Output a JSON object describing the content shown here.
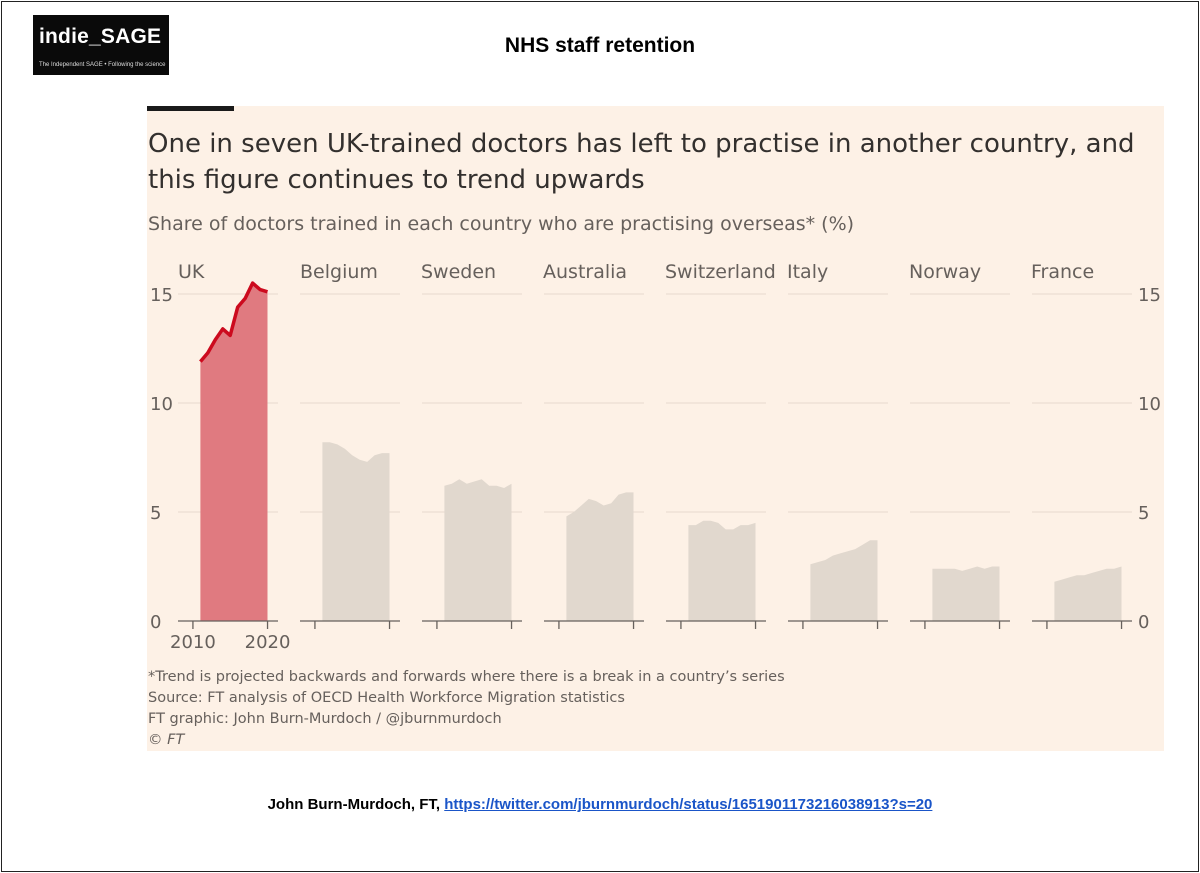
{
  "slide": {
    "logo": {
      "name": "indie_SAGE",
      "tagline": "The Independent SAGE • Following the science"
    },
    "title": "NHS staff retention",
    "credit_prefix": "John Burn-Murdoch, FT, ",
    "credit_link": "https://twitter.com/jburnmurdoch/status/1651901173216038913?s=20"
  },
  "chart_data": {
    "type": "area",
    "title": "One in seven UK-trained doctors has left to practise in another country, and this figure continues to trend upwards",
    "subtitle": "Share of doctors trained in each country who are practising overseas* (%)",
    "ylim": [
      0,
      15
    ],
    "yticks": [
      "0",
      "5",
      "10",
      "15"
    ],
    "xlim": [
      2008,
      2021
    ],
    "xticks_labels": [
      "2010",
      "2020"
    ],
    "x": [
      2011,
      2012,
      2013,
      2014,
      2015,
      2016,
      2017,
      2018,
      2019,
      2020
    ],
    "highlight_color": "#cc0a1e",
    "highlight_fill": "#e07a80",
    "other_fill": "#e1d8ce",
    "series": [
      {
        "name": "UK",
        "highlight": true,
        "values": [
          11.9,
          12.3,
          12.9,
          13.4,
          13.1,
          14.4,
          14.8,
          15.5,
          15.2,
          15.1
        ]
      },
      {
        "name": "Belgium",
        "values": [
          8.2,
          8.2,
          8.1,
          7.9,
          7.6,
          7.4,
          7.3,
          7.6,
          7.7,
          7.7
        ]
      },
      {
        "name": "Sweden",
        "values": [
          6.2,
          6.3,
          6.5,
          6.3,
          6.4,
          6.5,
          6.2,
          6.2,
          6.1,
          6.3
        ]
      },
      {
        "name": "Australia",
        "values": [
          4.8,
          5.0,
          5.3,
          5.6,
          5.5,
          5.3,
          5.4,
          5.8,
          5.9,
          5.9
        ]
      },
      {
        "name": "Switzerland",
        "values": [
          4.4,
          4.4,
          4.6,
          4.6,
          4.5,
          4.2,
          4.2,
          4.4,
          4.4,
          4.5
        ]
      },
      {
        "name": "Italy",
        "values": [
          2.6,
          2.7,
          2.8,
          3.0,
          3.1,
          3.2,
          3.3,
          3.5,
          3.7,
          3.7
        ]
      },
      {
        "name": "Norway",
        "values": [
          2.4,
          2.4,
          2.4,
          2.4,
          2.3,
          2.4,
          2.5,
          2.4,
          2.5,
          2.5
        ]
      },
      {
        "name": "France",
        "values": [
          1.8,
          1.9,
          2.0,
          2.1,
          2.1,
          2.2,
          2.3,
          2.4,
          2.4,
          2.5
        ]
      }
    ],
    "footnotes": [
      "*Trend is projected backwards and forwards where there is a break in a country’s series",
      "Source: FT analysis of OECD Health Workforce Migration statistics",
      "FT graphic: John Burn-Murdoch / @jburnmurdoch",
      "© FT"
    ]
  }
}
